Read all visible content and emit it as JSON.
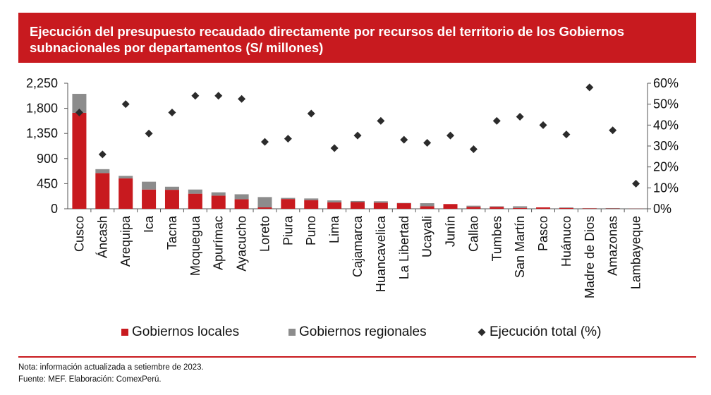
{
  "title_lines": [
    "Ejecución del presupuesto recaudado directamente por recursos del territorio de los Gobiernos",
    "subnacionales por departamentos (S/ millones)"
  ],
  "colors": {
    "title_bg": "#c81a1f",
    "locales": "#c81a1f",
    "regionales": "#8c8c8c",
    "marker": "#2b2b2b",
    "rule": "#c81a1f"
  },
  "chart_data": {
    "type": "bar",
    "stacked": true,
    "categories": [
      "Cusco",
      "Áncash",
      "Arequipa",
      "Ica",
      "Tacna",
      "Moquegua",
      "Apurímac",
      "Ayacucho",
      "Loreto",
      "Piura",
      "Puno",
      "Lima",
      "Cajamarca",
      "Huancavelica",
      "La Libertad",
      "Ucayali",
      "Junín",
      "Callao",
      "Tumbes",
      "San Martín",
      "Pasco",
      "Huánuco",
      "Madre de Dios",
      "Amazonas",
      "Lambayeque"
    ],
    "series": [
      {
        "name": "Gobiernos locales",
        "axis": "left",
        "kind": "bar",
        "values": [
          1720,
          640,
          545,
          345,
          340,
          270,
          235,
          170,
          25,
          175,
          155,
          115,
          120,
          110,
          100,
          45,
          85,
          35,
          35,
          15,
          25,
          15,
          8,
          5,
          2
        ]
      },
      {
        "name": "Gobiernos regionales",
        "axis": "left",
        "kind": "bar",
        "values": [
          340,
          70,
          45,
          140,
          55,
          75,
          60,
          90,
          185,
          20,
          30,
          35,
          20,
          25,
          5,
          55,
          0,
          20,
          10,
          30,
          0,
          10,
          5,
          8,
          0
        ]
      },
      {
        "name": "Ejecución total (%)",
        "axis": "right",
        "kind": "scatter",
        "values": [
          46,
          26,
          50,
          36,
          46,
          54,
          54,
          52.5,
          32,
          33.5,
          45.5,
          29,
          35,
          42,
          33,
          31.5,
          35,
          28.5,
          42,
          44,
          40,
          35.5,
          58,
          37.5,
          12
        ]
      }
    ],
    "y_left": {
      "min": 0,
      "max": 2250,
      "ticks": [
        "0",
        "450",
        "900",
        "1,350",
        "1,800",
        "2,250"
      ],
      "tick_values": [
        0,
        450,
        900,
        1350,
        1800,
        2250
      ]
    },
    "y_right": {
      "min": 0,
      "max": 60,
      "ticks": [
        "0%",
        "10%",
        "20%",
        "30%",
        "40%",
        "50%",
        "60%"
      ],
      "tick_values": [
        0,
        10,
        20,
        30,
        40,
        50,
        60
      ]
    },
    "legend": {
      "position": "bottom",
      "items": [
        "Gobiernos locales",
        "Gobiernos regionales",
        "Ejecución total (%)"
      ]
    },
    "grid": false
  },
  "notes": {
    "line1": "Nota: información actualizada a setiembre de 2023.",
    "line2": "Fuente: MEF. Elaboración: ComexPerú."
  }
}
